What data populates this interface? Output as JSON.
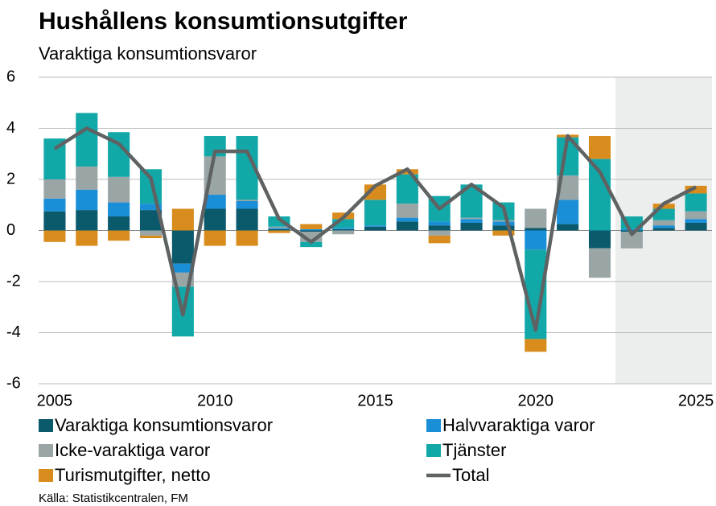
{
  "chart_data": {
    "type": "stacked_bar_line",
    "title": "Hushållens konsumtionsutgifter",
    "subtitle": "Varaktiga konsumtionsvaror",
    "source": "Källa: Statistikcentralen, FM",
    "x": [
      2005,
      2006,
      2007,
      2008,
      2009,
      2010,
      2011,
      2012,
      2013,
      2014,
      2015,
      2016,
      2017,
      2018,
      2019,
      2020,
      2021,
      2022,
      2023,
      2024,
      2025
    ],
    "xlim": [
      2004.5,
      2025.5
    ],
    "xticks": [
      2005,
      2010,
      2015,
      2020,
      2025
    ],
    "ylim": [
      -6,
      6
    ],
    "yticks": [
      -6,
      -4,
      -2,
      0,
      2,
      4,
      6
    ],
    "grid": true,
    "series": [
      {
        "name": "Varaktiga konsumtionsvaror",
        "color": "#0b5a6b",
        "values": [
          0.75,
          0.8,
          0.55,
          0.8,
          -1.3,
          0.85,
          0.85,
          0.05,
          -0.05,
          0.05,
          0.15,
          0.35,
          0.2,
          0.3,
          0.2,
          0.1,
          0.25,
          -0.7,
          -0.05,
          0.1,
          0.3
        ]
      },
      {
        "name": "Halvvaraktiga varor",
        "color": "#1a8fd8",
        "values": [
          0.5,
          0.8,
          0.55,
          0.25,
          -0.35,
          0.55,
          0.3,
          0.05,
          0.05,
          0.05,
          0.05,
          0.15,
          0.15,
          0.15,
          0.15,
          -0.75,
          0.95,
          0.0,
          0.05,
          0.1,
          0.15
        ]
      },
      {
        "name": "Icke-varaktiga varor",
        "color": "#9aa5a6",
        "values": [
          0.75,
          0.9,
          1.0,
          -0.2,
          -0.55,
          1.5,
          0.05,
          0.05,
          -0.4,
          -0.15,
          0.0,
          0.55,
          -0.2,
          0.05,
          0.05,
          0.75,
          0.95,
          -1.15,
          -0.65,
          0.2,
          0.3
        ]
      },
      {
        "name": "Tjänster",
        "color": "#12a8a8",
        "values": [
          1.6,
          2.1,
          1.75,
          1.35,
          -1.95,
          0.8,
          2.5,
          0.4,
          -0.2,
          0.35,
          1.0,
          1.15,
          1.0,
          1.3,
          0.7,
          -3.5,
          1.5,
          2.8,
          0.5,
          0.45,
          0.7
        ]
      },
      {
        "name": "Turismutgifter, netto",
        "color": "#d98c1e",
        "values": [
          -0.45,
          -0.6,
          -0.4,
          -0.1,
          0.85,
          -0.6,
          -0.6,
          -0.1,
          0.2,
          0.25,
          0.6,
          0.2,
          -0.3,
          0.0,
          -0.2,
          -0.5,
          0.1,
          0.9,
          0.0,
          0.2,
          0.3
        ]
      }
    ],
    "line": {
      "name": "Total",
      "color": "#5f6262",
      "values": [
        3.2,
        4.0,
        3.4,
        2.05,
        -3.3,
        3.1,
        3.1,
        0.45,
        -0.45,
        0.5,
        1.75,
        2.4,
        0.85,
        1.8,
        0.9,
        -3.9,
        3.7,
        2.3,
        -0.15,
        1.05,
        1.7
      ]
    }
  }
}
